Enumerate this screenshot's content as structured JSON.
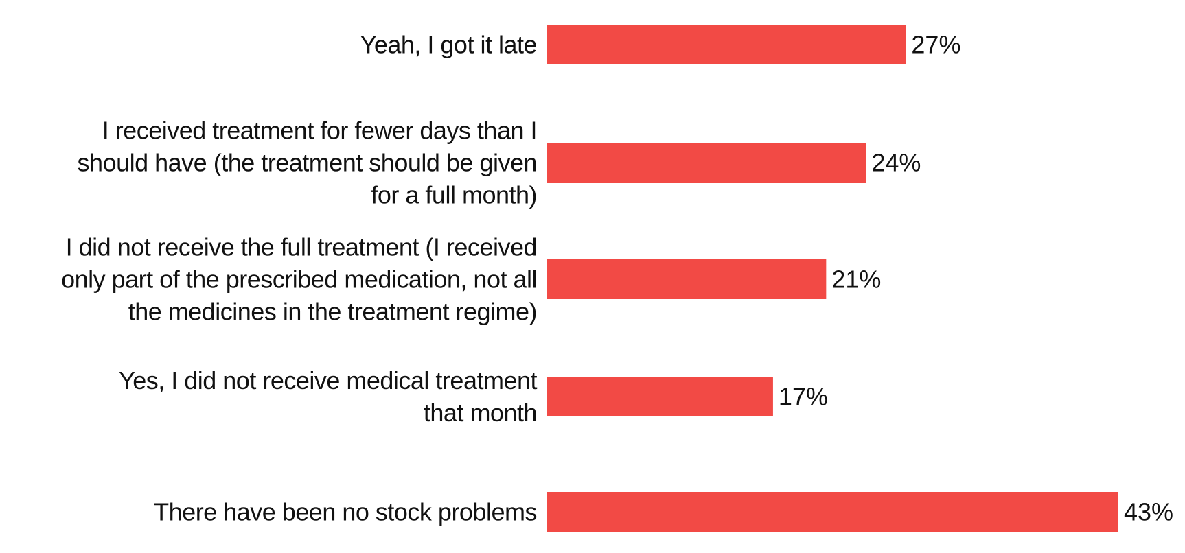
{
  "chart_data": {
    "type": "bar",
    "orientation": "horizontal",
    "categories": [
      "Yeah, I got it late",
      "I received treatment for fewer days than I should have (the treatment should be given for a full month)",
      "I did not receive the full treatment (I received only part of the prescribed medication, not all the medicines in the treatment regime)",
      "Yes, I did not receive medical treatment that month",
      "There have been no stock problems"
    ],
    "category_lines": [
      [
        "Yeah, I got it late"
      ],
      [
        "I received treatment for fewer days than I",
        "should have (the treatment should be given",
        "for a full month)"
      ],
      [
        "I did not receive the full treatment (I received",
        "only part of the prescribed medication, not all",
        "the medicines in the treatment regime)"
      ],
      [
        "Yes, I did not receive medical treatment",
        "that month"
      ],
      [
        "There have been no stock problems"
      ]
    ],
    "values": [
      27,
      24,
      21,
      17,
      43
    ],
    "value_labels": [
      "27%",
      "24%",
      "21%",
      "17%",
      "43%"
    ],
    "unit": "%",
    "title": "",
    "xlabel": "",
    "ylabel": "",
    "xlim": [
      0,
      43
    ],
    "grid": false,
    "legend": "none",
    "bar_color": "#f24a45"
  }
}
